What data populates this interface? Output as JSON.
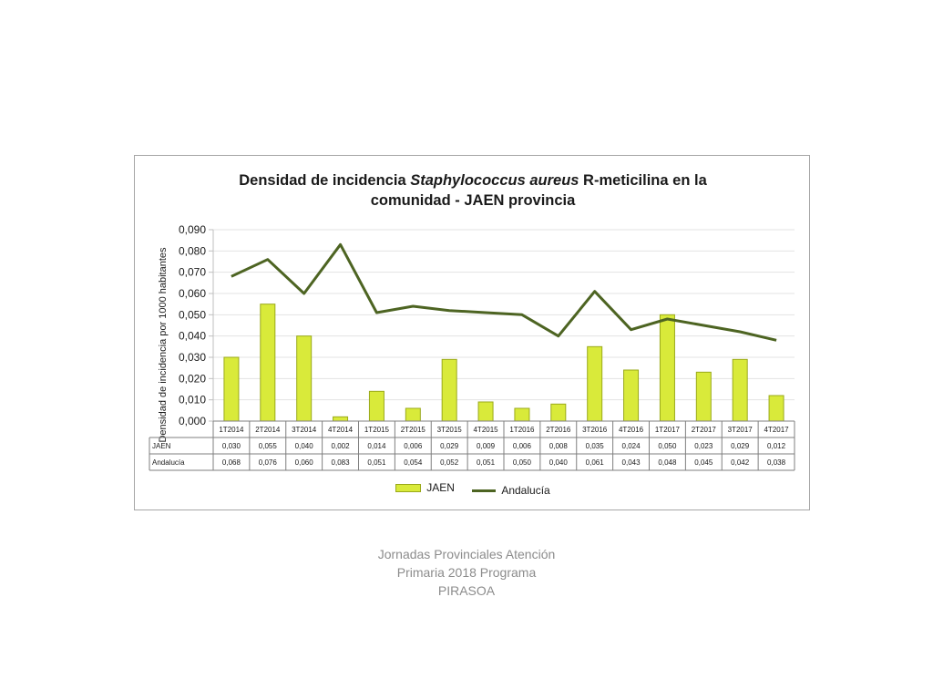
{
  "footer": {
    "line1": "Jornadas Provinciales Atención",
    "line2": "Primaria 2018  Programa",
    "line3": "PIRASOA"
  },
  "chart_data": {
    "type": "bar",
    "title_line1_pre": "Densidad de incidencia ",
    "title_line1_italic": "Staphylococcus aureus",
    "title_line1_post": " R-meticilina en la",
    "title_line2": "comunidad - JAEN provincia",
    "ylabel": "Densidad de incidencia por 1000 habitantes",
    "xlabel": "",
    "ylim": [
      0,
      0.09
    ],
    "yticks": [
      "0,000",
      "0,010",
      "0,020",
      "0,030",
      "0,040",
      "0,050",
      "0,060",
      "0,070",
      "0,080",
      "0,090"
    ],
    "grid": true,
    "legend_position": "bottom",
    "categories": [
      "1T2014",
      "2T2014",
      "3T2014",
      "4T2014",
      "1T2015",
      "2T2015",
      "3T2015",
      "4T2015",
      "1T2016",
      "2T2016",
      "3T2016",
      "4T2016",
      "1T2017",
      "2T2017",
      "3T2017",
      "4T2017"
    ],
    "series": [
      {
        "name": "JAEN",
        "type": "bar",
        "color": "#d9ea3a",
        "values": [
          0.03,
          0.055,
          0.04,
          0.002,
          0.014,
          0.006,
          0.029,
          0.009,
          0.006,
          0.008,
          0.035,
          0.024,
          0.05,
          0.023,
          0.029,
          0.012
        ],
        "labels": [
          "0,030",
          "0,055",
          "0,040",
          "0,002",
          "0,014",
          "0,006",
          "0,029",
          "0,009",
          "0,006",
          "0,008",
          "0,035",
          "0,024",
          "0,050",
          "0,023",
          "0,029",
          "0,012"
        ]
      },
      {
        "name": "Andalucía",
        "type": "line",
        "color": "#4d6422",
        "values": [
          0.068,
          0.076,
          0.06,
          0.083,
          0.051,
          0.054,
          0.052,
          0.051,
          0.05,
          0.04,
          0.061,
          0.043,
          0.048,
          0.045,
          0.042,
          0.038
        ],
        "labels": [
          "0,068",
          "0,076",
          "0,060",
          "0,083",
          "0,051",
          "0,054",
          "0,052",
          "0,051",
          "0,050",
          "0,040",
          "0,061",
          "0,043",
          "0,048",
          "0,045",
          "0,042",
          "0,038"
        ]
      }
    ]
  }
}
